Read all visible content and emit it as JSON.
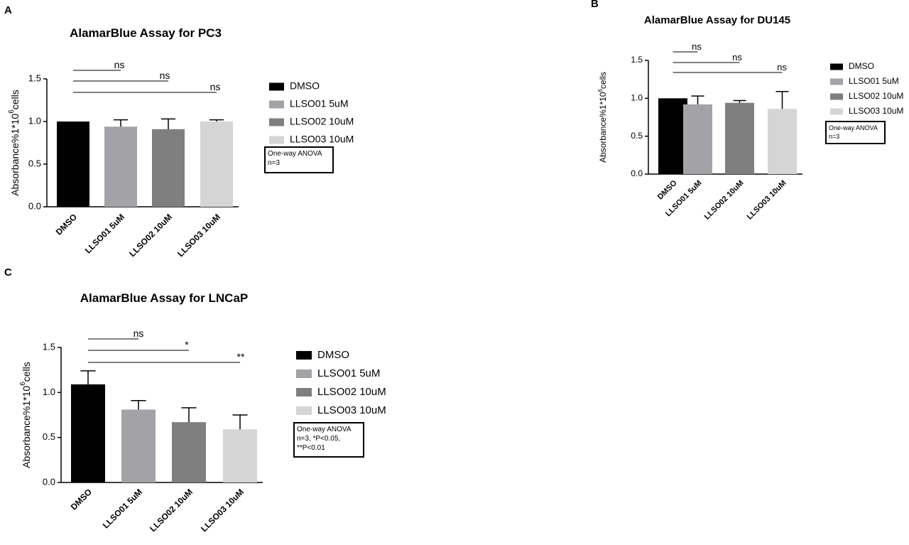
{
  "colors": {
    "series": [
      "#000000",
      "#a3a2a6",
      "#7f7f7f",
      "#d5d5d5"
    ],
    "axis": "#000000"
  },
  "chart_data": [
    {
      "panel": "A",
      "type": "bar",
      "title": "AlamarBlue Assay for PC3",
      "ylabel": "Absorbance%1*10",
      "ylabel_sup": "6",
      "ylabel_tail": "cells",
      "ylim": [
        0,
        1.5
      ],
      "yticks": [
        "0.0",
        "0.5",
        "1.0",
        "1.5"
      ],
      "categories": [
        "DMSO",
        "LLSO01 5uM",
        "LLSO02 10uM",
        "LLSO03 10uM"
      ],
      "values": [
        1.0,
        0.94,
        0.91,
        1.0
      ],
      "errors": [
        0,
        0.08,
        0.12,
        0.02
      ],
      "legend": [
        "DMSO",
        "LLSO01 5uM",
        "LLSO02 10uM",
        "LLSO03 10uM"
      ],
      "legend_position": "right",
      "annotation": [
        "One-way ANOVA",
        "n=3"
      ],
      "significance": [
        {
          "to": 1,
          "label": "ns"
        },
        {
          "to": 2,
          "label": "ns"
        },
        {
          "to": 3,
          "label": "ns"
        }
      ]
    },
    {
      "panel": "B",
      "type": "bar",
      "title": "AlamarBlue Assay for DU145",
      "ylabel": "Absorbance%1*10",
      "ylabel_sup": "6",
      "ylabel_tail": "cells",
      "ylim": [
        0,
        1.5
      ],
      "yticks": [
        "0.0",
        "0.5",
        "1.0",
        "1.5"
      ],
      "categories": [
        "DMSO",
        "LLSO01 5uM",
        "LLSO02 10uM",
        "LLSO03 10uM"
      ],
      "values": [
        1.0,
        0.92,
        0.94,
        0.86
      ],
      "errors": [
        0,
        0.11,
        0.03,
        0.23
      ],
      "legend": [
        "DMSO",
        "LLSO01 5uM",
        "LLSO02 10uM",
        "LLSO03 10uM"
      ],
      "legend_position": "right",
      "annotation": [
        "One-way ANOVA",
        "n=3"
      ],
      "significance": [
        {
          "to": 1,
          "label": "ns"
        },
        {
          "to": 2,
          "label": "ns"
        },
        {
          "to": 3,
          "label": "ns"
        }
      ]
    },
    {
      "panel": "C",
      "type": "bar",
      "title": "AlamarBlue Assay for LNCaP",
      "ylabel": "Absorbance%1*10",
      "ylabel_sup": "6",
      "ylabel_tail": "cells",
      "ylim": [
        0,
        1.5
      ],
      "yticks": [
        "0.0",
        "0.5",
        "1.0",
        "1.5"
      ],
      "categories": [
        "DMSO",
        "LLSO01 5uM",
        "LLSO02 10uM",
        "LLSO03 10uM"
      ],
      "values": [
        1.09,
        0.81,
        0.67,
        0.59
      ],
      "errors": [
        0.15,
        0.1,
        0.16,
        0.16
      ],
      "legend": [
        "DMSO",
        "LLSO01 5uM",
        "LLSO02 10uM",
        "LLSO03 10uM"
      ],
      "legend_position": "right",
      "annotation": [
        "One-way ANOVA",
        "n=3, *P<0.05,",
        "**P<0.01"
      ],
      "significance": [
        {
          "to": 1,
          "label": "ns"
        },
        {
          "to": 2,
          "label": "*"
        },
        {
          "to": 3,
          "label": "**"
        }
      ]
    }
  ]
}
